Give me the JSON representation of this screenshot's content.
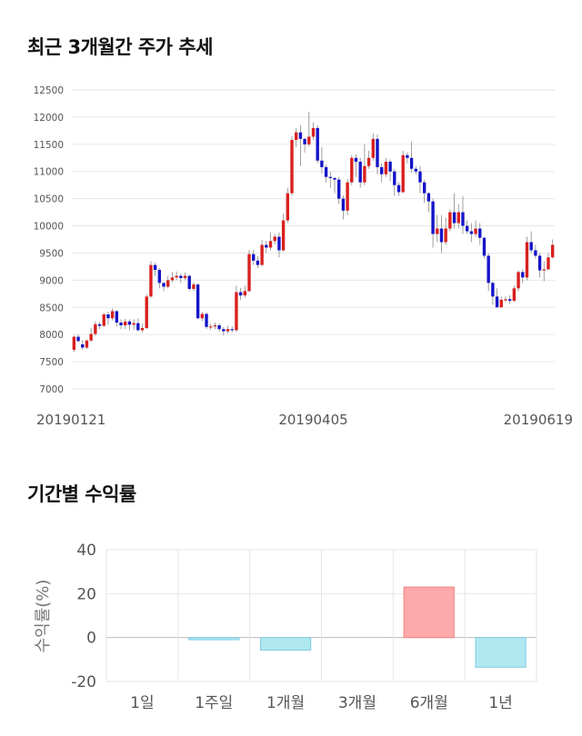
{
  "sections": {
    "price_title": "최근 3개월간 주가 추세",
    "returns_title": "기간별 수익률"
  },
  "colors": {
    "up": "#d9201f",
    "down": "#1414c8",
    "positive_bar": "#ffaaaa",
    "negative_bar": "#b0e8f2",
    "grid": "#e6e6e6"
  },
  "chart_data": [
    {
      "type": "candlestick",
      "title": "최근 3개월간 주가 추세",
      "ylim": [
        7000,
        12500
      ],
      "yticks": [
        7000,
        7500,
        8000,
        8500,
        9000,
        9500,
        10000,
        10500,
        11000,
        11500,
        12000,
        12500
      ],
      "x_labels": [
        "20190121",
        "20190405",
        "20190619"
      ],
      "grid": true,
      "candles": [
        [
          7720,
          7960,
          7680,
          7980
        ],
        [
          7960,
          7880,
          7850,
          8000
        ],
        [
          7820,
          7760,
          7720,
          7900
        ],
        [
          7760,
          7890,
          7740,
          7910
        ],
        [
          7890,
          8010,
          7860,
          8120
        ],
        [
          8010,
          8190,
          7980,
          8240
        ],
        [
          8190,
          8160,
          8100,
          8230
        ],
        [
          8160,
          8370,
          8140,
          8400
        ],
        [
          8370,
          8300,
          8180,
          8420
        ],
        [
          8300,
          8430,
          8260,
          8480
        ],
        [
          8430,
          8220,
          8150,
          8450
        ],
        [
          8220,
          8170,
          8100,
          8280
        ],
        [
          8170,
          8240,
          8100,
          8290
        ],
        [
          8240,
          8180,
          8080,
          8280
        ],
        [
          8180,
          8210,
          8090,
          8280
        ],
        [
          8210,
          8080,
          8060,
          8300
        ],
        [
          8080,
          8120,
          8040,
          8200
        ],
        [
          8120,
          8700,
          8100,
          8740
        ],
        [
          8700,
          9280,
          8680,
          9350
        ],
        [
          9280,
          9190,
          9080,
          9320
        ],
        [
          9190,
          8950,
          8850,
          9220
        ],
        [
          8950,
          8880,
          8800,
          8960
        ],
        [
          8880,
          9000,
          8850,
          9080
        ],
        [
          9000,
          9050,
          8960,
          9150
        ],
        [
          9050,
          9080,
          9000,
          9160
        ],
        [
          9080,
          9040,
          8950,
          9120
        ],
        [
          9040,
          9080,
          9000,
          9140
        ],
        [
          9080,
          8840,
          8800,
          9100
        ],
        [
          8840,
          8920,
          8800,
          8960
        ],
        [
          8920,
          8300,
          8280,
          8940
        ],
        [
          8300,
          8380,
          8250,
          8420
        ],
        [
          8380,
          8140,
          8100,
          8400
        ],
        [
          8140,
          8150,
          8080,
          8200
        ],
        [
          8150,
          8170,
          8100,
          8220
        ],
        [
          8170,
          8100,
          8050,
          8200
        ],
        [
          8100,
          8060,
          7980,
          8140
        ],
        [
          8060,
          8100,
          8020,
          8160
        ],
        [
          8100,
          8080,
          8040,
          8150
        ],
        [
          8080,
          8780,
          8050,
          8900
        ],
        [
          8780,
          8720,
          8640,
          8860
        ],
        [
          8720,
          8800,
          8680,
          8900
        ],
        [
          8800,
          9480,
          8780,
          9560
        ],
        [
          9480,
          9360,
          9280,
          9560
        ],
        [
          9360,
          9280,
          9220,
          9440
        ],
        [
          9280,
          9650,
          9260,
          9740
        ],
        [
          9650,
          9600,
          9500,
          9720
        ],
        [
          9600,
          9720,
          9550,
          9880
        ],
        [
          9720,
          9800,
          9660,
          9850
        ],
        [
          9800,
          9550,
          9420,
          9880
        ],
        [
          9550,
          10100,
          9530,
          10220
        ],
        [
          10100,
          10600,
          10050,
          10700
        ],
        [
          10600,
          11580,
          10560,
          11650
        ],
        [
          11580,
          11720,
          11450,
          11800
        ],
        [
          11720,
          11600,
          11100,
          11850
        ],
        [
          11600,
          11500,
          11350,
          11620
        ],
        [
          11500,
          11640,
          11460,
          12100
        ],
        [
          11640,
          11800,
          11580,
          11900
        ],
        [
          11800,
          11200,
          11150,
          11850
        ],
        [
          11200,
          11080,
          10960,
          11450
        ],
        [
          11080,
          10900,
          10800,
          11120
        ],
        [
          10900,
          10880,
          10700,
          11000
        ],
        [
          10880,
          10850,
          10600,
          10900
        ],
        [
          10850,
          10500,
          10400,
          10900
        ],
        [
          10500,
          10280,
          10120,
          10560
        ],
        [
          10280,
          10800,
          10200,
          10860
        ],
        [
          10800,
          11250,
          10750,
          11300
        ],
        [
          11250,
          11180,
          10900,
          11320
        ],
        [
          11180,
          10800,
          10700,
          11250
        ],
        [
          10800,
          11100,
          10750,
          11500
        ],
        [
          11100,
          11250,
          11050,
          11380
        ],
        [
          11250,
          11600,
          11200,
          11700
        ],
        [
          11600,
          11080,
          10950,
          11680
        ],
        [
          11080,
          10950,
          10800,
          11150
        ],
        [
          10950,
          11180,
          10900,
          11250
        ],
        [
          11180,
          11000,
          10820,
          11220
        ],
        [
          11000,
          10750,
          10550,
          11050
        ],
        [
          10750,
          10620,
          10550,
          10800
        ],
        [
          10620,
          11300,
          10600,
          11380
        ],
        [
          11300,
          11250,
          11150,
          11350
        ],
        [
          11250,
          11050,
          10980,
          11550
        ],
        [
          11050,
          11000,
          10950,
          11100
        ],
        [
          11000,
          10800,
          10600,
          11100
        ],
        [
          10800,
          10600,
          10420,
          10850
        ],
        [
          10600,
          10450,
          10250,
          10620
        ],
        [
          10450,
          9850,
          9600,
          10500
        ],
        [
          9850,
          9950,
          9700,
          10200
        ],
        [
          9950,
          9700,
          9500,
          10200
        ],
        [
          9700,
          9950,
          9650,
          10150
        ],
        [
          9950,
          10250,
          9900,
          10300
        ],
        [
          10250,
          10050,
          9950,
          10600
        ],
        [
          10050,
          10250,
          9950,
          10400
        ],
        [
          10250,
          10000,
          9850,
          10550
        ],
        [
          10000,
          9900,
          9850,
          10100
        ],
        [
          9900,
          9850,
          9700,
          10050
        ],
        [
          9850,
          9950,
          9800,
          10100
        ],
        [
          9950,
          9780,
          9650,
          10050
        ],
        [
          9780,
          9450,
          9400,
          9800
        ],
        [
          9450,
          8950,
          8800,
          9500
        ],
        [
          8950,
          8700,
          8550,
          8980
        ],
        [
          8700,
          8500,
          8550,
          8850
        ],
        [
          8500,
          8640,
          8520,
          8700
        ],
        [
          8640,
          8650,
          8600,
          8700
        ],
        [
          8650,
          8620,
          8560,
          8720
        ],
        [
          8620,
          8850,
          8600,
          8900
        ],
        [
          8850,
          9150,
          8800,
          9180
        ],
        [
          9150,
          9050,
          8950,
          9200
        ],
        [
          9050,
          9700,
          9000,
          9800
        ],
        [
          9700,
          9550,
          9500,
          9900
        ],
        [
          9550,
          9450,
          9400,
          9650
        ],
        [
          9450,
          9180,
          9050,
          9500
        ],
        [
          9180,
          9200,
          8980,
          9350
        ],
        [
          9200,
          9420,
          9180,
          9500
        ],
        [
          9420,
          9650,
          9400,
          9750
        ]
      ]
    },
    {
      "type": "bar",
      "ylabel": "수익률(%)",
      "ylim": [
        -20,
        40
      ],
      "yticks": [
        -20,
        0,
        20,
        40
      ],
      "categories": [
        "1일",
        "1주일",
        "1개월",
        "3개월",
        "6개월",
        "1년"
      ],
      "values": [
        0,
        -1,
        -5.7,
        0,
        23,
        -13.5
      ]
    }
  ]
}
